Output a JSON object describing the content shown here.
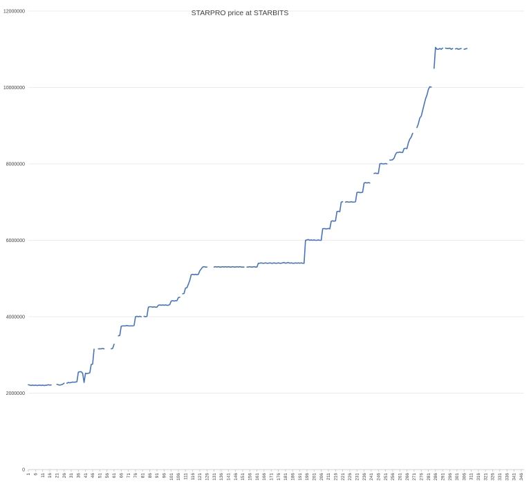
{
  "chart_data": {
    "type": "line",
    "title": "STARPRO price at STARBITS",
    "xlabel": "",
    "ylabel": "",
    "ylim": [
      0,
      12000000
    ],
    "yticks": [
      0,
      2000000,
      4000000,
      6000000,
      8000000,
      10000000,
      12000000
    ],
    "ytick_labels": [
      "0",
      "2000000",
      "4000000",
      "6000000",
      "8000000",
      "10000000",
      "12000000"
    ],
    "xlim": [
      1,
      348
    ],
    "xtick_labels": [
      "1",
      "6",
      "11",
      "16",
      "21",
      "26",
      "31",
      "36",
      "41",
      "46",
      "51",
      "56",
      "61",
      "66",
      "71",
      "76",
      "81",
      "86",
      "91",
      "96",
      "101",
      "106",
      "111",
      "116",
      "121",
      "126",
      "131",
      "136",
      "141",
      "146",
      "151",
      "156",
      "161",
      "166",
      "171",
      "176",
      "181",
      "186",
      "191",
      "196",
      "201",
      "206",
      "211",
      "216",
      "221",
      "226",
      "231",
      "236",
      "241",
      "246",
      "251",
      "256",
      "261",
      "266",
      "271",
      "276",
      "281",
      "286",
      "291",
      "296",
      "301",
      "306",
      "311",
      "316",
      "321",
      "326",
      "331",
      "336",
      "341",
      "346"
    ],
    "grid": "horizontal",
    "legend": "none",
    "series_color": "#4472c4",
    "series": [
      {
        "values": [
          2220000,
          2210000,
          2200000,
          2210000,
          2200000,
          2210000,
          2200000,
          2205000,
          2210000,
          2200000,
          2210000,
          2200000,
          2205000,
          2210000,
          2220000,
          2210000,
          2215000,
          null,
          null,
          null,
          2230000,
          2220000,
          2210000,
          2220000,
          2230000,
          2260000,
          null,
          2260000,
          2280000,
          2270000,
          2280000,
          2290000,
          2285000,
          2290000,
          2300000,
          2550000,
          2560000,
          2560000,
          2520000,
          2280000,
          2520000,
          2510000,
          2520000,
          2530000,
          2750000,
          2760000,
          3150000,
          null,
          null,
          3160000,
          3160000,
          3160000,
          3170000,
          3160000,
          null,
          null,
          null,
          null,
          3160000,
          3170000,
          3280000,
          null,
          null,
          3500000,
          3510000,
          3750000,
          3760000,
          3760000,
          3760000,
          3770000,
          3760000,
          3760000,
          3760000,
          3760000,
          3770000,
          4000000,
          4010000,
          4000000,
          4010000,
          4000000,
          null,
          4010000,
          4000000,
          4010000,
          4250000,
          4260000,
          4260000,
          4250000,
          4260000,
          4250000,
          4250000,
          4300000,
          4310000,
          4300000,
          4310000,
          4300000,
          4310000,
          4300000,
          4300000,
          4320000,
          4410000,
          4420000,
          4410000,
          4420000,
          4420000,
          4500000,
          4510000,
          null,
          4600000,
          4610000,
          4750000,
          4760000,
          4850000,
          4950000,
          5100000,
          5110000,
          5100000,
          5110000,
          5100000,
          5110000,
          5200000,
          5250000,
          5300000,
          5310000,
          5300000,
          5300000,
          null,
          null,
          null,
          null,
          5300000,
          5310000,
          5300000,
          5310000,
          5300000,
          5300000,
          5310000,
          5300000,
          5310000,
          5300000,
          5310000,
          5300000,
          5300000,
          5310000,
          5300000,
          5300000,
          5310000,
          5300000,
          5310000,
          5300000,
          5300000,
          5300000,
          null,
          5300000,
          5300000,
          5310000,
          5300000,
          5300000,
          5310000,
          5300000,
          5300000,
          5400000,
          5400000,
          5410000,
          5400000,
          5400000,
          5410000,
          5400000,
          5400000,
          5410000,
          5400000,
          5400000,
          5410000,
          5400000,
          5400000,
          5410000,
          5400000,
          5400000,
          5410000,
          5420000,
          5400000,
          5410000,
          5420000,
          5400000,
          5410000,
          5400000,
          5400000,
          5410000,
          5400000,
          5410000,
          5400000,
          5410000,
          5400000,
          5400000,
          6000000,
          6010000,
          6020000,
          6000000,
          6010000,
          6000000,
          6010000,
          6000000,
          6000000,
          6010000,
          6000000,
          6000000,
          6300000,
          6310000,
          6300000,
          6300000,
          6310000,
          6300000,
          6500000,
          6510000,
          6500000,
          6510000,
          6750000,
          6760000,
          6750000,
          7000000,
          7010000,
          null,
          7000000,
          7010000,
          7000000,
          7000000,
          7010000,
          7000000,
          7000000,
          7010000,
          7250000,
          7260000,
          7250000,
          7250000,
          7260000,
          7500000,
          7510000,
          7500000,
          7510000,
          7500000,
          null,
          null,
          7750000,
          7760000,
          7750000,
          7750000,
          8000000,
          8010000,
          8000000,
          8000000,
          8010000,
          8000000,
          null,
          8100000,
          8100000,
          8110000,
          8150000,
          8250000,
          8300000,
          8300000,
          8310000,
          8300000,
          8300000,
          8400000,
          8410000,
          8400000,
          8550000,
          8650000,
          8700000,
          8800000,
          null,
          null,
          8950000,
          9050000,
          9200000,
          9250000,
          9400000,
          9550000,
          9700000,
          9800000,
          9950000,
          10020000,
          10010000,
          null,
          10500000,
          11050000,
          11000000,
          11000000,
          11020000,
          11000000,
          11030000,
          null,
          11030000,
          11020000,
          11020000,
          11030000,
          11000000,
          11020000,
          null,
          11010000,
          11020000,
          11000000,
          11010000,
          11020000,
          null,
          11000000,
          11010000,
          11020000
        ]
      }
    ]
  }
}
